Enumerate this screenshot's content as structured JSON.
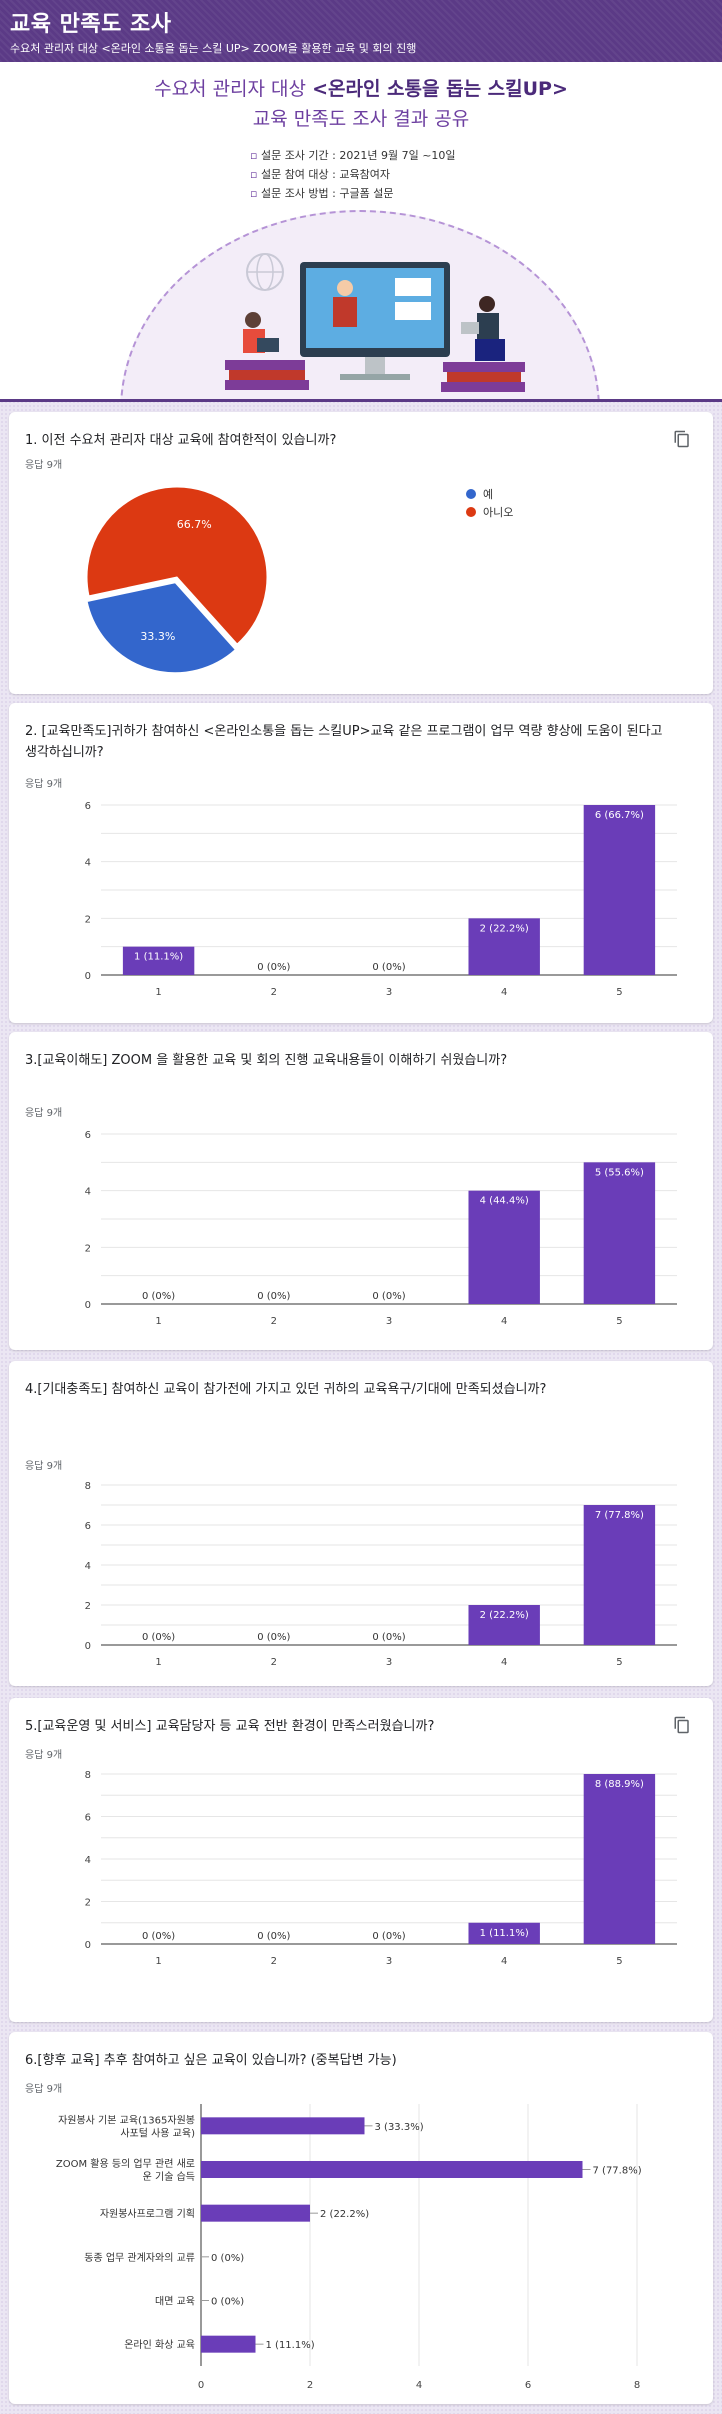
{
  "header": {
    "title": "교육 만족도 조사",
    "subtitle": "수요처 관리자 대상 <온라인 소통을 돕는 스킬 UP> ZOOM을 활용한 교육 및 회의 진행"
  },
  "hero": {
    "title_prefix": "수요처 관리자 대상 ",
    "title_bold": "<온라인 소통을 돕는 스킬UP>",
    "title_line2": "교육 만족도 조사 결과 공유",
    "info": [
      "설문 조사 기간 : 2021년 9월 7일 ~10일",
      "설문 참여 대상 : 교육참여자",
      "설문 조사 방법 : 구글폼 설문"
    ]
  },
  "colors": {
    "accent": "#5b3a86",
    "bar": "#6a3db8",
    "pie_blue": "#3366cc",
    "pie_red": "#dc3912"
  },
  "questions": [
    {
      "question": "1. 이전 수요처 관리자 대상 교육에 참여한적이 있습니까?",
      "responses": "응답 9개",
      "chart_data": {
        "type": "pie",
        "categories": [
          "예",
          "아니오"
        ],
        "values": [
          33.3,
          66.7
        ],
        "labels": [
          "33.3%",
          "66.7%"
        ]
      }
    },
    {
      "question": "2. [교육만족도]귀하가 참여하신 <온라인소통을 돕는 스킬UP>교육 같은 프로그램이 업무 역량 향상에 도움이 된다고 생각하십니까?",
      "responses": "응답 9개",
      "chart_data": {
        "type": "bar",
        "categories": [
          "1",
          "2",
          "3",
          "4",
          "5"
        ],
        "values": [
          1,
          0,
          0,
          2,
          6
        ],
        "labels": [
          "1 (11.1%)",
          "0 (0%)",
          "0 (0%)",
          "2 (22.2%)",
          "6 (66.7%)"
        ],
        "ylim": [
          0,
          6
        ],
        "yticks": [
          0,
          2,
          4,
          6
        ]
      }
    },
    {
      "question": "3.[교육이해도] ZOOM 을 활용한 교육 및 회의 진행 교육내용들이 이해하기 쉬웠습니까?",
      "responses": "응답 9개",
      "chart_data": {
        "type": "bar",
        "categories": [
          "1",
          "2",
          "3",
          "4",
          "5"
        ],
        "values": [
          0,
          0,
          0,
          4,
          5
        ],
        "labels": [
          "0 (0%)",
          "0 (0%)",
          "0 (0%)",
          "4 (44.4%)",
          "5 (55.6%)"
        ],
        "ylim": [
          0,
          6
        ],
        "yticks": [
          0,
          2,
          4,
          6
        ]
      }
    },
    {
      "question": "4.[기대충족도] 참여하신 교육이 참가전에 가지고 있던 귀하의 교육욕구/기대에 만족되셨습니까?",
      "responses": "응답 9개",
      "chart_data": {
        "type": "bar",
        "categories": [
          "1",
          "2",
          "3",
          "4",
          "5"
        ],
        "values": [
          0,
          0,
          0,
          2,
          7
        ],
        "labels": [
          "0 (0%)",
          "0 (0%)",
          "0 (0%)",
          "2 (22.2%)",
          "7 (77.8%)"
        ],
        "ylim": [
          0,
          8
        ],
        "yticks": [
          0,
          2,
          4,
          6,
          8
        ]
      }
    },
    {
      "question": "5.[교육운영 및 서비스] 교육담당자 등 교육 전반 환경이 만족스러웠습니까?",
      "responses": "응답 9개",
      "chart_data": {
        "type": "bar",
        "categories": [
          "1",
          "2",
          "3",
          "4",
          "5"
        ],
        "values": [
          0,
          0,
          0,
          1,
          8
        ],
        "labels": [
          "0 (0%)",
          "0 (0%)",
          "0 (0%)",
          "1 (11.1%)",
          "8 (88.9%)"
        ],
        "ylim": [
          0,
          8
        ],
        "yticks": [
          0,
          2,
          4,
          6,
          8
        ]
      }
    },
    {
      "question": "6.[향후 교육] 추후 참여하고 싶은 교육이 있습니까? (중복답변 가능)",
      "responses": "응답 9개",
      "chart_data": {
        "type": "bar",
        "orientation": "horizontal",
        "categories": [
          "자원봉사 기본 교육(1365자원봉사포털 사용 교육)",
          "ZOOM 활용 등의 업무 관련 새로운 기술 습득",
          "자원봉사프로그램 기획",
          "동종 업무 관계자와의 교류",
          "대면 교육",
          "온라인 화상 교육"
        ],
        "category_lines": [
          [
            "자원봉사 기본 교육(1365자원봉",
            "사포털 사용 교육)"
          ],
          [
            "ZOOM 활용 등의 업무 관련 새로",
            "운 기술 습득"
          ],
          [
            "자원봉사프로그램 기획"
          ],
          [
            "동종 업무 관계자와의 교류"
          ],
          [
            "대면 교육"
          ],
          [
            "온라인 화상 교육"
          ]
        ],
        "values": [
          3,
          7,
          2,
          0,
          0,
          1
        ],
        "labels": [
          "3 (33.3%)",
          "7 (77.8%)",
          "2 (22.2%)",
          "0 (0%)",
          "0 (0%)",
          "1 (11.1%)"
        ],
        "xlim": [
          0,
          8
        ],
        "xticks": [
          0,
          2,
          4,
          6,
          8
        ]
      }
    }
  ]
}
